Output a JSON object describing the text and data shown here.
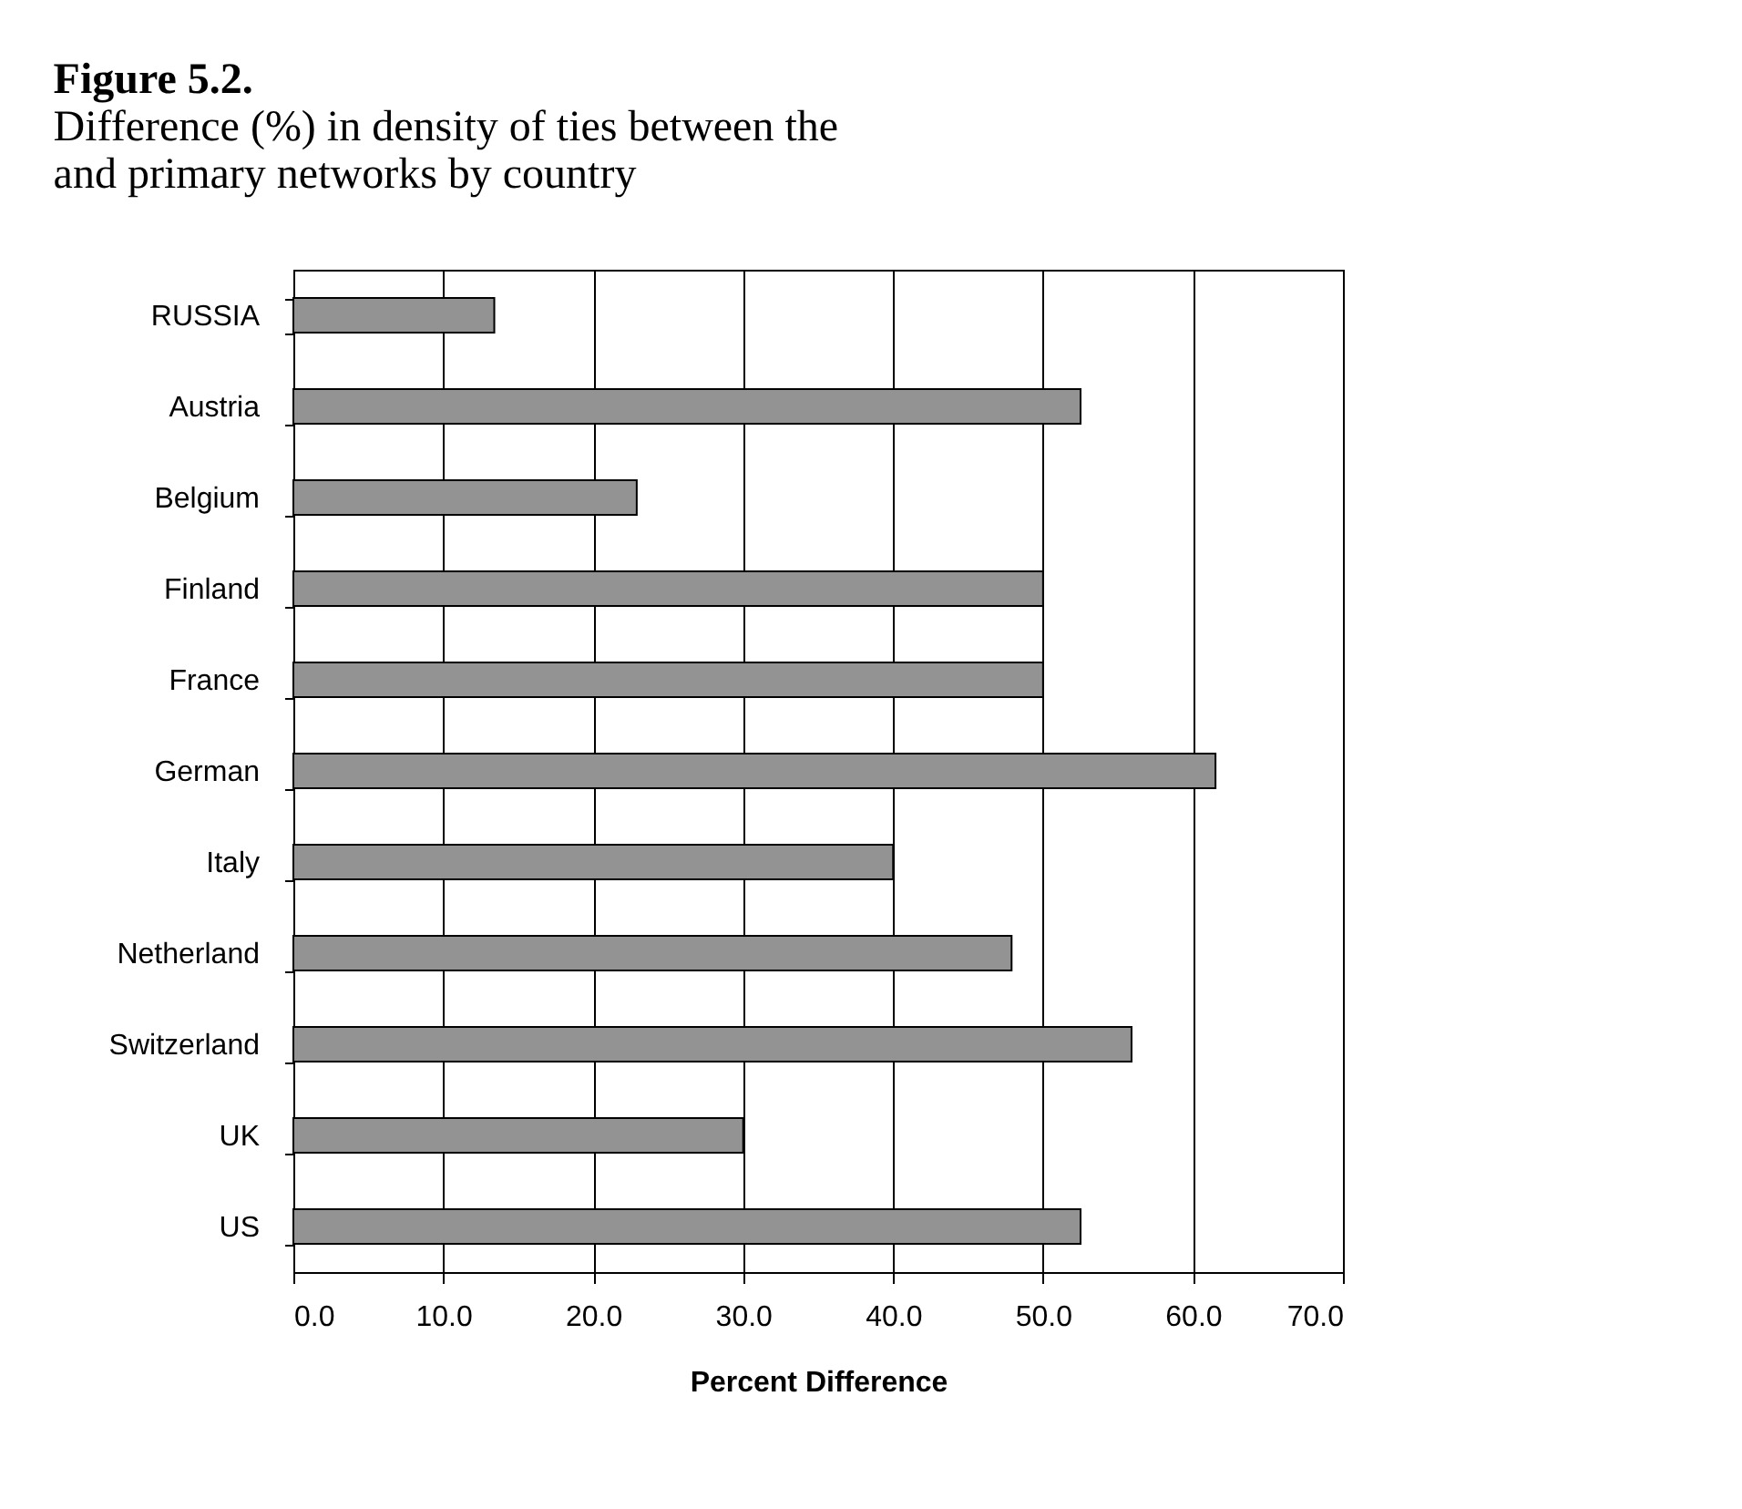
{
  "chart_data": {
    "type": "bar",
    "orientation": "horizontal",
    "title": "Figure 5.2.",
    "subtitle": "Difference (%) in density of ties between the and primary networks by country",
    "xlabel": "Percent Difference",
    "categories": [
      "RUSSIA",
      "Austria",
      "Belgium",
      "Finland",
      "France",
      "German",
      "Italy",
      "Netherland",
      "Switzerland",
      "UK",
      "US"
    ],
    "values": [
      13.4,
      52.5,
      22.9,
      50.0,
      50.0,
      61.5,
      40.0,
      47.9,
      55.9,
      30.0,
      52.5
    ],
    "color": "#939393",
    "xlim": [
      0,
      70
    ],
    "xticks": [
      {
        "value": 0,
        "label": "0.0"
      },
      {
        "value": 10,
        "label": "10.0"
      },
      {
        "value": 20,
        "label": "20.0"
      },
      {
        "value": 30,
        "label": "30.0"
      },
      {
        "value": 40,
        "label": "40.0"
      },
      {
        "value": 50,
        "label": "50.0"
      },
      {
        "value": 60,
        "label": "60.0"
      },
      {
        "value": 70,
        "label": "70.0"
      }
    ],
    "grid": "x"
  }
}
